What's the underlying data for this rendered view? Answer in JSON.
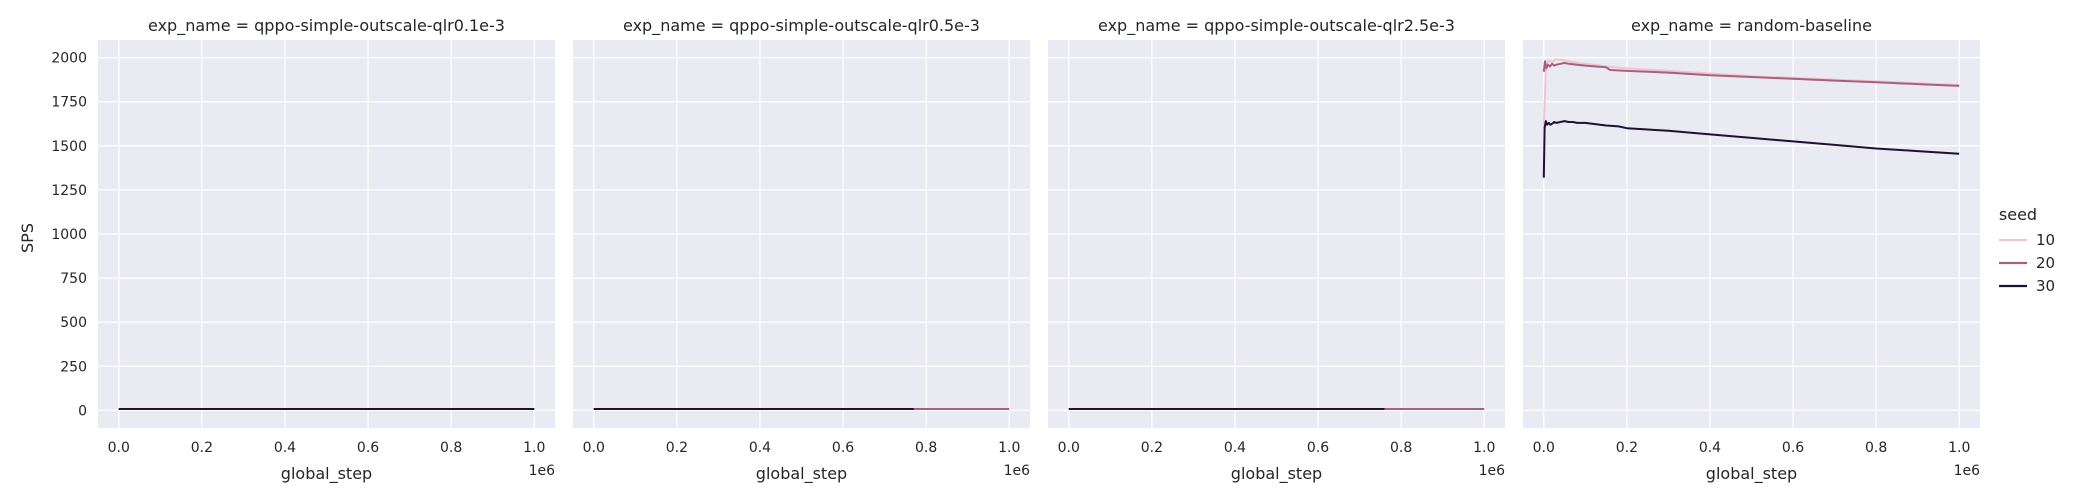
{
  "chart_data": {
    "type": "line",
    "ylabel": "SPS",
    "xlabel": "global_step",
    "x_offset_label": "1e6",
    "xlim": [
      -0.05,
      1.05
    ],
    "ylim": [
      -100,
      2100
    ],
    "xticks": [
      0.0,
      0.2,
      0.4,
      0.6,
      0.8,
      1.0
    ],
    "xtick_labels": [
      "0.0",
      "0.2",
      "0.4",
      "0.6",
      "0.8",
      "1.0"
    ],
    "yticks": [
      0,
      250,
      500,
      750,
      1000,
      1250,
      1500,
      1750,
      2000
    ],
    "ytick_labels": [
      "0",
      "250",
      "500",
      "750",
      "1000",
      "1250",
      "1500",
      "1750",
      "2000"
    ],
    "grid": true,
    "legend": {
      "title": "seed",
      "placement": "right",
      "entries": [
        {
          "label": "10",
          "color": "#efc5ce"
        },
        {
          "label": "20",
          "color": "#a8607f"
        },
        {
          "label": "30",
          "color": "#1f1131"
        }
      ]
    },
    "facets": [
      {
        "title": "exp_name = qppo-simple-outscale-qlr0.1e-3",
        "series": [
          {
            "name": "10",
            "color": "#efc5ce",
            "x": [
              0.0,
              0.73
            ],
            "y": [
              8,
              8
            ]
          },
          {
            "name": "20",
            "color": "#a8607f",
            "x": [
              0.0,
              1.0
            ],
            "y": [
              8,
              8
            ]
          },
          {
            "name": "30",
            "color": "#1f1131",
            "x": [
              0.0,
              1.0
            ],
            "y": [
              8,
              8
            ]
          }
        ]
      },
      {
        "title": "exp_name = qppo-simple-outscale-qlr0.5e-3",
        "series": [
          {
            "name": "10",
            "color": "#efc5ce",
            "x": [
              0.0,
              1.0
            ],
            "y": [
              8,
              8
            ]
          },
          {
            "name": "20",
            "color": "#a8607f",
            "x": [
              0.0,
              1.0
            ],
            "y": [
              8,
              8
            ]
          },
          {
            "name": "30",
            "color": "#1f1131",
            "x": [
              0.0,
              0.77
            ],
            "y": [
              8,
              8
            ]
          }
        ]
      },
      {
        "title": "exp_name = qppo-simple-outscale-qlr2.5e-3",
        "series": [
          {
            "name": "10",
            "color": "#efc5ce",
            "x": [
              0.0,
              1.0
            ],
            "y": [
              8,
              8
            ]
          },
          {
            "name": "20",
            "color": "#a8607f",
            "x": [
              0.0,
              1.0
            ],
            "y": [
              8,
              8
            ]
          },
          {
            "name": "30",
            "color": "#1f1131",
            "x": [
              0.0,
              0.76
            ],
            "y": [
              8,
              8
            ]
          }
        ]
      },
      {
        "title": "exp_name = random-baseline",
        "series": [
          {
            "name": "10",
            "color": "#efc5ce",
            "x": [
              0.0,
              0.005,
              0.01,
              0.02,
              0.03,
              0.05,
              0.08,
              0.1,
              0.15,
              0.2,
              0.3,
              0.4,
              0.5,
              0.6,
              0.7,
              0.8,
              0.9,
              1.0
            ],
            "y": [
              1600,
              1930,
              1985,
              1975,
              1990,
              1985,
              1970,
              1965,
              1950,
              1940,
              1925,
              1910,
              1895,
              1885,
              1875,
              1865,
              1855,
              1845
            ]
          },
          {
            "name": "20",
            "color": "#a8607f",
            "x": [
              0.0,
              0.003,
              0.006,
              0.01,
              0.015,
              0.02,
              0.025,
              0.03,
              0.04,
              0.05,
              0.06,
              0.08,
              0.1,
              0.15,
              0.16,
              0.2,
              0.3,
              0.4,
              0.5,
              0.6,
              0.7,
              0.8,
              0.9,
              1.0
            ],
            "y": [
              1920,
              1980,
              1940,
              1960,
              1950,
              1965,
              1955,
              1960,
              1965,
              1970,
              1965,
              1960,
              1955,
              1945,
              1930,
              1925,
              1915,
              1900,
              1890,
              1880,
              1870,
              1860,
              1850,
              1840
            ]
          },
          {
            "name": "30",
            "color": "#1f1131",
            "x": [
              0.0,
              0.002,
              0.005,
              0.008,
              0.012,
              0.016,
              0.02,
              0.025,
              0.03,
              0.04,
              0.05,
              0.06,
              0.07,
              0.08,
              0.1,
              0.15,
              0.18,
              0.2,
              0.3,
              0.4,
              0.5,
              0.6,
              0.7,
              0.8,
              0.9,
              1.0
            ],
            "y": [
              1320,
              1600,
              1640,
              1620,
              1630,
              1620,
              1625,
              1635,
              1630,
              1635,
              1640,
              1635,
              1635,
              1630,
              1630,
              1615,
              1610,
              1600,
              1585,
              1565,
              1545,
              1525,
              1505,
              1485,
              1470,
              1455
            ]
          }
        ]
      }
    ]
  }
}
